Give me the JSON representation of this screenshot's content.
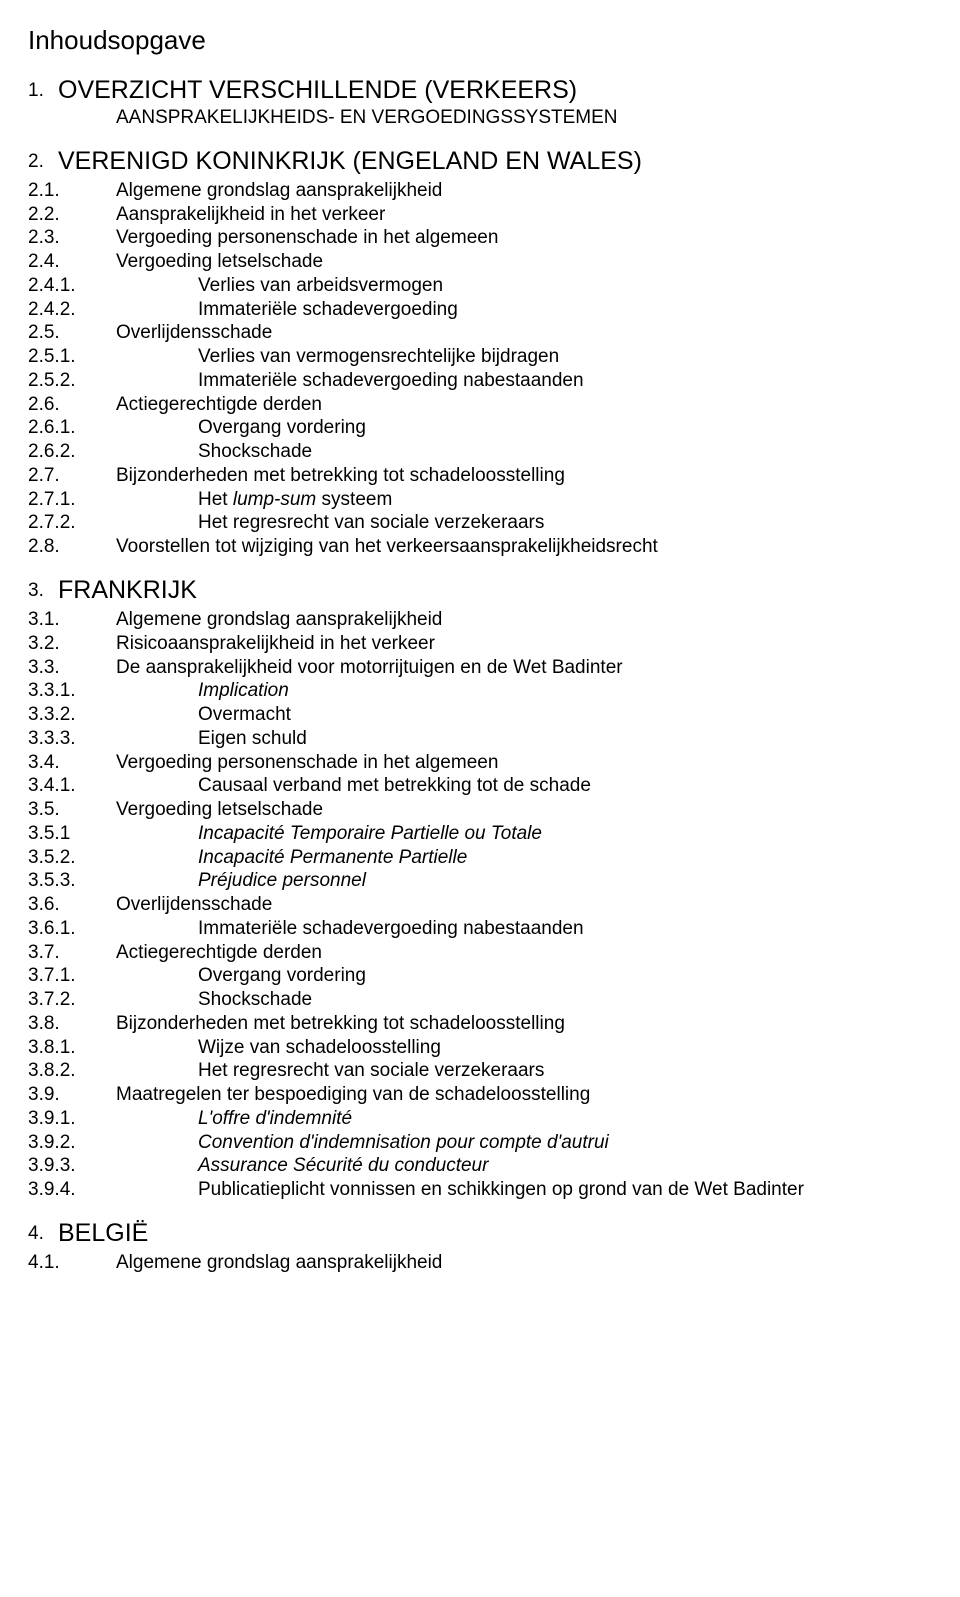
{
  "page_title": "Inhoudsopgave",
  "entries": [
    {
      "num": "1.",
      "text": "OVERZICHT VERSCHILLENDE (VERKEERS)",
      "level": 1,
      "cls": "heading-caps"
    },
    {
      "wrap": true,
      "text": "AANSPRAKELIJKHEIDS- EN VERGOEDINGSSYSTEMEN",
      "cls": "heading-caps"
    },
    {
      "num": "2.",
      "text": "VERENIGD KONINKRIJK (ENGELAND EN WALES)",
      "level": 1,
      "cls": "heading-caps"
    },
    {
      "num": "2.1.",
      "text": "Algemene grondslag aansprakelijkheid",
      "level": 2
    },
    {
      "num": "2.2.",
      "text": "Aansprakelijkheid in het verkeer",
      "level": 2
    },
    {
      "num": "2.3.",
      "text": "Vergoeding personenschade in het algemeen",
      "level": 2
    },
    {
      "num": "2.4.",
      "text": "Vergoeding letselschade",
      "level": 2
    },
    {
      "num": "2.4.1.",
      "text": "Verlies van arbeidsvermogen",
      "level": 3
    },
    {
      "num": "2.4.2.",
      "text": "Immateriële schadevergoeding",
      "level": 3
    },
    {
      "num": "2.5.",
      "text": "Overlijdensschade",
      "level": 2
    },
    {
      "num": "2.5.1.",
      "text": "Verlies van vermogensrechtelijke bijdragen",
      "level": 3
    },
    {
      "num": "2.5.2.",
      "text": "Immateriële schadevergoeding nabestaanden",
      "level": 3
    },
    {
      "num": "2.6.",
      "text": "Actiegerechtigde derden",
      "level": 2
    },
    {
      "num": "2.6.1.",
      "text": "Overgang vordering",
      "level": 3
    },
    {
      "num": "2.6.2.",
      "text": "Shockschade",
      "level": 3
    },
    {
      "num": "2.7.",
      "text": "Bijzonderheden met betrekking tot schadeloosstelling",
      "level": 2
    },
    {
      "num": "2.7.1.",
      "text": "Het lump-sum systeem",
      "level": 3,
      "italic_part": "lump-sum"
    },
    {
      "num": "2.7.2.",
      "text": "Het regresrecht van sociale verzekeraars",
      "level": 3
    },
    {
      "num": "2.8.",
      "text": "Voorstellen tot wijziging van het verkeersaansprakelijkheidsrecht",
      "level": 2
    },
    {
      "num": "3.",
      "text": "FRANKRIJK",
      "level": 1,
      "cls": "heading-caps"
    },
    {
      "num": "3.1.",
      "text": "Algemene grondslag aansprakelijkheid",
      "level": 2
    },
    {
      "num": "3.2.",
      "text": "Risicoaansprakelijkheid in het verkeer",
      "level": 2
    },
    {
      "num": "3.3.",
      "text": "De aansprakelijkheid voor motorrijtuigen en de Wet Badinter",
      "level": 2
    },
    {
      "num": "3.3.1.",
      "text": "Implication",
      "level": 3,
      "italic": true
    },
    {
      "num": "3.3.2.",
      "text": "Overmacht",
      "level": 3
    },
    {
      "num": "3.3.3.",
      "text": "Eigen schuld",
      "level": 3
    },
    {
      "num": "3.4.",
      "text": "Vergoeding personenschade in het algemeen",
      "level": 2
    },
    {
      "num": "3.4.1.",
      "text": "Causaal verband met betrekking tot de schade",
      "level": 3
    },
    {
      "num": "3.5.",
      "text": "Vergoeding letselschade",
      "level": 2
    },
    {
      "num": "3.5.1",
      "text": "Incapacité Temporaire Partielle ou Totale",
      "level": 3,
      "italic": true
    },
    {
      "num": "3.5.2.",
      "text": "Incapacité Permanente Partielle",
      "level": 3,
      "italic": true
    },
    {
      "num": "3.5.3.",
      "text": "Préjudice personnel",
      "level": 3,
      "italic": true
    },
    {
      "num": "3.6.",
      "text": "Overlijdensschade",
      "level": 2
    },
    {
      "num": "3.6.1.",
      "text": "Immateriële schadevergoeding nabestaanden",
      "level": 3
    },
    {
      "num": "3.7.",
      "text": "Actiegerechtigde derden",
      "level": 2
    },
    {
      "num": "3.7.1.",
      "text": "Overgang vordering",
      "level": 3
    },
    {
      "num": "3.7.2.",
      "text": "Shockschade",
      "level": 3
    },
    {
      "num": "3.8.",
      "text": "Bijzonderheden met betrekking tot schadeloosstelling",
      "level": 2
    },
    {
      "num": "3.8.1.",
      "text": "Wijze van schadeloosstelling",
      "level": 3
    },
    {
      "num": "3.8.2.",
      "text": "Het regresrecht van sociale verzekeraars",
      "level": 3
    },
    {
      "num": "3.9.",
      "text": "Maatregelen ter bespoediging van de schadeloosstelling",
      "level": 2
    },
    {
      "num": "3.9.1.",
      "text": "L'offre d'indemnité",
      "level": 3,
      "italic": true
    },
    {
      "num": "3.9.2.",
      "text": "Convention d'indemnisation pour compte d'autrui",
      "level": 3,
      "italic": true
    },
    {
      "num": "3.9.3.",
      "text": "Assurance Sécurité du conducteur",
      "level": 3,
      "italic": true
    },
    {
      "num": "3.9.4.",
      "text": "Publicatieplicht vonnissen en schikkingen op grond van de Wet Badinter",
      "level": 3
    },
    {
      "num": "4.",
      "text": "BELGIË",
      "level": 1,
      "cls": "heading-caps"
    },
    {
      "num": "4.1.",
      "text": "Algemene grondslag aansprakelijkheid",
      "level": 2
    }
  ]
}
